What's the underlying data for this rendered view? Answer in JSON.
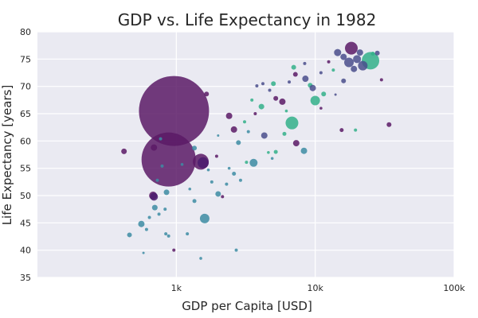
{
  "chart_data": {
    "type": "scatter",
    "title": "GDP vs. Life Expectancy in 1982",
    "xlabel": "GDP per Capita [USD]",
    "ylabel": "Life Expectancy [years]",
    "x_scale": "log",
    "xlim": [
      100,
      100000
    ],
    "ylim": [
      35,
      80
    ],
    "x_ticks": [
      1000,
      10000,
      100000
    ],
    "x_tick_labels": [
      "1k",
      "10k",
      "100k"
    ],
    "y_ticks": [
      35,
      40,
      45,
      50,
      55,
      60,
      65,
      70,
      75,
      80
    ],
    "y_tick_labels": [
      "35",
      "40",
      "45",
      "50",
      "55",
      "60",
      "65",
      "70",
      "75",
      "80"
    ],
    "grid": true,
    "legend": "none",
    "background_color": "#eaeaf2",
    "point_alpha": 0.85,
    "colors": {
      "dark_purple": "#5b1a66",
      "indigo": "#4a4d8c",
      "teal": "#3d8ca3",
      "green": "#33b08a"
    },
    "points": [
      {
        "x": 962,
        "y": 65.5,
        "size": 44,
        "color": "#5b1a66"
      },
      {
        "x": 880,
        "y": 56.6,
        "size": 34,
        "color": "#5b1a66"
      },
      {
        "x": 1500,
        "y": 56.2,
        "size": 10,
        "color": "#5b1a66"
      },
      {
        "x": 1560,
        "y": 56.0,
        "size": 7,
        "color": "#4a1c6e"
      },
      {
        "x": 18200,
        "y": 77.0,
        "size": 8,
        "color": "#5b1a66"
      },
      {
        "x": 25000,
        "y": 74.7,
        "size": 11,
        "color": "#33b08a"
      },
      {
        "x": 6800,
        "y": 63.3,
        "size": 8,
        "color": "#33b08a"
      },
      {
        "x": 10000,
        "y": 67.4,
        "size": 6,
        "color": "#33b08a"
      },
      {
        "x": 1600,
        "y": 45.8,
        "size": 6,
        "color": "#3d8ca3"
      },
      {
        "x": 3600,
        "y": 56.0,
        "size": 5,
        "color": "#3d8ca3"
      },
      {
        "x": 8300,
        "y": 58.2,
        "size": 4,
        "color": "#3d8ca3"
      },
      {
        "x": 7300,
        "y": 59.6,
        "size": 4,
        "color": "#5b1a66"
      },
      {
        "x": 4300,
        "y": 61.0,
        "size": 4,
        "color": "#4a4d8c"
      },
      {
        "x": 2400,
        "y": 64.6,
        "size": 4,
        "color": "#5b1a66"
      },
      {
        "x": 2600,
        "y": 62.1,
        "size": 4,
        "color": "#5b1a66"
      },
      {
        "x": 690,
        "y": 58.8,
        "size": 4,
        "color": "#5b1a66"
      },
      {
        "x": 420,
        "y": 58.1,
        "size": 3.5,
        "color": "#5b1a66"
      },
      {
        "x": 680,
        "y": 50.0,
        "size": 5,
        "color": "#5b1a66"
      },
      {
        "x": 690,
        "y": 49.8,
        "size": 5,
        "color": "#4a1c6e"
      },
      {
        "x": 700,
        "y": 47.8,
        "size": 3.5,
        "color": "#3d8ca3"
      },
      {
        "x": 560,
        "y": 44.8,
        "size": 4,
        "color": "#3d8ca3"
      },
      {
        "x": 460,
        "y": 42.8,
        "size": 3,
        "color": "#3d8ca3"
      },
      {
        "x": 850,
        "y": 50.6,
        "size": 3.5,
        "color": "#3d8ca3"
      },
      {
        "x": 1350,
        "y": 58.7,
        "size": 3,
        "color": "#3d8ca3"
      },
      {
        "x": 1650,
        "y": 68.6,
        "size": 3,
        "color": "#5b1a66"
      },
      {
        "x": 2000,
        "y": 50.3,
        "size": 3.5,
        "color": "#3d8ca3"
      },
      {
        "x": 2800,
        "y": 59.7,
        "size": 3,
        "color": "#3d8ca3"
      },
      {
        "x": 4100,
        "y": 66.3,
        "size": 3.5,
        "color": "#33b08a"
      },
      {
        "x": 5200,
        "y": 67.8,
        "size": 3,
        "color": "#5b1a66"
      },
      {
        "x": 5800,
        "y": 67.2,
        "size": 4,
        "color": "#5b1a66"
      },
      {
        "x": 5000,
        "y": 70.5,
        "size": 3,
        "color": "#33b08a"
      },
      {
        "x": 7000,
        "y": 73.5,
        "size": 3,
        "color": "#33b08a"
      },
      {
        "x": 7200,
        "y": 72.2,
        "size": 3,
        "color": "#5b1a66"
      },
      {
        "x": 8500,
        "y": 71.4,
        "size": 4,
        "color": "#4a4d8c"
      },
      {
        "x": 9200,
        "y": 70.2,
        "size": 3,
        "color": "#33b08a"
      },
      {
        "x": 9600,
        "y": 69.7,
        "size": 4,
        "color": "#4a4d8c"
      },
      {
        "x": 11500,
        "y": 68.6,
        "size": 3,
        "color": "#33b08a"
      },
      {
        "x": 14500,
        "y": 76.2,
        "size": 4.5,
        "color": "#4a4d8c"
      },
      {
        "x": 16000,
        "y": 75.4,
        "size": 4,
        "color": "#4a4d8c"
      },
      {
        "x": 17500,
        "y": 74.4,
        "size": 6,
        "color": "#4a4d8c"
      },
      {
        "x": 20000,
        "y": 75.0,
        "size": 5,
        "color": "#4a4d8c"
      },
      {
        "x": 22000,
        "y": 73.8,
        "size": 6,
        "color": "#4a4d8c"
      },
      {
        "x": 19000,
        "y": 73.2,
        "size": 4,
        "color": "#4a4d8c"
      },
      {
        "x": 21000,
        "y": 76.2,
        "size": 4,
        "color": "#4a4d8c"
      },
      {
        "x": 28000,
        "y": 76.1,
        "size": 3,
        "color": "#4a4d8c"
      },
      {
        "x": 16000,
        "y": 71.0,
        "size": 3,
        "color": "#4a4d8c"
      },
      {
        "x": 15500,
        "y": 62.0,
        "size": 2.5,
        "color": "#5b1a66"
      },
      {
        "x": 34000,
        "y": 63.0,
        "size": 3,
        "color": "#5b1a66"
      },
      {
        "x": 19500,
        "y": 62.0,
        "size": 2,
        "color": "#33b08a"
      },
      {
        "x": 6000,
        "y": 61.3,
        "size": 2.5,
        "color": "#33b08a"
      },
      {
        "x": 5200,
        "y": 58.0,
        "size": 2.5,
        "color": "#33b08a"
      },
      {
        "x": 3200,
        "y": 56.1,
        "size": 2,
        "color": "#33b08a"
      },
      {
        "x": 2600,
        "y": 54.0,
        "size": 2.5,
        "color": "#3d8ca3"
      },
      {
        "x": 2900,
        "y": 52.8,
        "size": 2,
        "color": "#3d8ca3"
      },
      {
        "x": 2300,
        "y": 52.1,
        "size": 2,
        "color": "#3d8ca3"
      },
      {
        "x": 1800,
        "y": 52.5,
        "size": 2,
        "color": "#3d8ca3"
      },
      {
        "x": 1350,
        "y": 49.0,
        "size": 2.5,
        "color": "#3d8ca3"
      },
      {
        "x": 2150,
        "y": 49.8,
        "size": 2,
        "color": "#5b1a66"
      },
      {
        "x": 830,
        "y": 47.5,
        "size": 2,
        "color": "#3d8ca3"
      },
      {
        "x": 750,
        "y": 46.6,
        "size": 2,
        "color": "#3d8ca3"
      },
      {
        "x": 640,
        "y": 46.0,
        "size": 2,
        "color": "#3d8ca3"
      },
      {
        "x": 610,
        "y": 43.8,
        "size": 2,
        "color": "#3d8ca3"
      },
      {
        "x": 840,
        "y": 43.0,
        "size": 2,
        "color": "#3d8ca3"
      },
      {
        "x": 880,
        "y": 42.6,
        "size": 2,
        "color": "#3d8ca3"
      },
      {
        "x": 1200,
        "y": 43.0,
        "size": 2,
        "color": "#3d8ca3"
      },
      {
        "x": 960,
        "y": 40.0,
        "size": 2,
        "color": "#5b1a66"
      },
      {
        "x": 1500,
        "y": 38.5,
        "size": 1.8,
        "color": "#3d8ca3"
      },
      {
        "x": 2700,
        "y": 40.0,
        "size": 2,
        "color": "#3d8ca3"
      },
      {
        "x": 790,
        "y": 55.4,
        "size": 2,
        "color": "#3d8ca3"
      },
      {
        "x": 770,
        "y": 60.4,
        "size": 2,
        "color": "#3d8ca3"
      },
      {
        "x": 3100,
        "y": 63.5,
        "size": 2,
        "color": "#33b08a"
      },
      {
        "x": 3700,
        "y": 65.0,
        "size": 2,
        "color": "#5b1a66"
      },
      {
        "x": 3800,
        "y": 70.1,
        "size": 2,
        "color": "#4a4d8c"
      },
      {
        "x": 4200,
        "y": 70.5,
        "size": 2,
        "color": "#4a4d8c"
      },
      {
        "x": 4700,
        "y": 69.3,
        "size": 2,
        "color": "#4a4d8c"
      },
      {
        "x": 6500,
        "y": 70.8,
        "size": 2,
        "color": "#4a4d8c"
      },
      {
        "x": 8400,
        "y": 74.2,
        "size": 2,
        "color": "#4a4d8c"
      },
      {
        "x": 11000,
        "y": 72.5,
        "size": 2,
        "color": "#4a4d8c"
      },
      {
        "x": 13500,
        "y": 73.0,
        "size": 2,
        "color": "#33b08a"
      },
      {
        "x": 12500,
        "y": 74.5,
        "size": 2,
        "color": "#5b1a66"
      },
      {
        "x": 30000,
        "y": 71.2,
        "size": 2,
        "color": "#5b1a66"
      },
      {
        "x": 26000,
        "y": 76.0,
        "size": 2.5,
        "color": "#33b08a"
      },
      {
        "x": 3300,
        "y": 61.7,
        "size": 2,
        "color": "#3d8ca3"
      },
      {
        "x": 1950,
        "y": 57.2,
        "size": 2,
        "color": "#5b1a66"
      },
      {
        "x": 2400,
        "y": 55.0,
        "size": 1.8,
        "color": "#3d8ca3"
      },
      {
        "x": 1700,
        "y": 54.7,
        "size": 1.8,
        "color": "#3d8ca3"
      },
      {
        "x": 4900,
        "y": 56.8,
        "size": 1.8,
        "color": "#3d8ca3"
      },
      {
        "x": 4600,
        "y": 57.9,
        "size": 1.8,
        "color": "#33b08a"
      },
      {
        "x": 3500,
        "y": 67.5,
        "size": 2,
        "color": "#33b08a"
      },
      {
        "x": 2000,
        "y": 61.0,
        "size": 1.5,
        "color": "#3d8ca3"
      },
      {
        "x": 11000,
        "y": 66.0,
        "size": 1.8,
        "color": "#5b1a66"
      },
      {
        "x": 14000,
        "y": 68.5,
        "size": 1.5,
        "color": "#4a4d8c"
      },
      {
        "x": 6200,
        "y": 65.5,
        "size": 1.8,
        "color": "#33b08a"
      },
      {
        "x": 580,
        "y": 39.5,
        "size": 1.5,
        "color": "#3d8ca3"
      },
      {
        "x": 730,
        "y": 52.8,
        "size": 2,
        "color": "#3d8ca3"
      },
      {
        "x": 1250,
        "y": 51.2,
        "size": 1.8,
        "color": "#3d8ca3"
      },
      {
        "x": 1100,
        "y": 55.7,
        "size": 1.8,
        "color": "#3d8ca3"
      }
    ]
  }
}
